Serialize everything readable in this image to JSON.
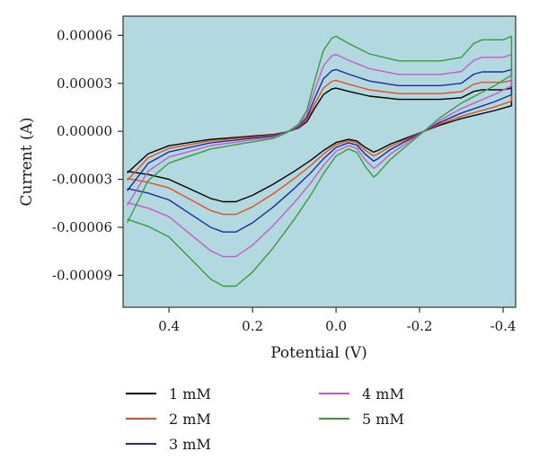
{
  "chart_data": {
    "type": "line",
    "title": "",
    "xlabel": "Potential (V)",
    "ylabel": "Current (A)",
    "xlim": [
      0.51,
      -0.43
    ],
    "ylim": [
      -0.00011,
      7.2e-05
    ],
    "x_ticks": [
      0.4,
      0.2,
      0.0,
      -0.2,
      -0.4
    ],
    "x_tick_labels": [
      "0.4",
      "0.2",
      "0.0",
      "-0.2",
      "-0.4"
    ],
    "y_ticks": [
      6e-05,
      3e-05,
      0.0,
      -3e-05,
      -6e-05,
      -9e-05
    ],
    "y_tick_labels": [
      "0.00006",
      "0.00003",
      "0.00000",
      "-0.00003",
      "-0.00006",
      "-0.00009"
    ],
    "plot_background": "#b3d9e0",
    "grid": false,
    "legend_position": "bottom",
    "series": [
      {
        "name": "1 mM",
        "color": "#000000",
        "scale": 1.0
      },
      {
        "name": "2 mM",
        "color": "#e0501e",
        "scale": 1.18
      },
      {
        "name": "3 mM",
        "color": "#1f2a9c",
        "scale": 1.43
      },
      {
        "name": "4 mM",
        "color": "#c85ac8",
        "scale": 1.78
      },
      {
        "name": "5 mM",
        "color": "#3c9a3c",
        "scale": 2.2
      }
    ],
    "base_curve": {
      "description_free_points": true,
      "forward_x": [
        0.5,
        0.45,
        0.4,
        0.35,
        0.3,
        0.25,
        0.2,
        0.15,
        0.12,
        0.09,
        0.07,
        0.05,
        0.03,
        0.01,
        0.0,
        -0.03,
        -0.08,
        -0.15,
        -0.2,
        -0.25,
        -0.3,
        -0.33,
        -0.35,
        -0.4,
        -0.42
      ],
      "forward_y": [
        -2.6e-05,
        -1.4e-05,
        -9e-06,
        -7e-06,
        -5e-06,
        -4e-06,
        -3e-06,
        -2e-06,
        -5e-07,
        2e-06,
        6e-06,
        1.5e-05,
        2.3e-05,
        2.65e-05,
        2.7e-05,
        2.5e-05,
        2.2e-05,
        2e-05,
        2e-05,
        2e-05,
        2.1e-05,
        2.5e-05,
        2.6e-05,
        2.6e-05,
        2.7e-05
      ],
      "reverse_x": [
        -0.42,
        -0.38,
        -0.3,
        -0.25,
        -0.2,
        -0.17,
        -0.13,
        -0.1,
        -0.09,
        -0.07,
        -0.05,
        -0.03,
        0.0,
        0.03,
        0.06,
        0.1,
        0.15,
        0.2,
        0.24,
        0.27,
        0.3,
        0.35,
        0.4,
        0.45,
        0.5
      ],
      "reverse_y": [
        1.6e-05,
        1.3e-05,
        8e-06,
        4e-06,
        -1e-06,
        -4e-06,
        -8e-06,
        -1.2e-05,
        -1.3e-05,
        -1e-05,
        -6e-06,
        -5e-06,
        -7e-06,
        -1.2e-05,
        -1.8e-05,
        -2.5e-05,
        -3.3e-05,
        -4e-05,
        -4.4e-05,
        -4.4e-05,
        -4.2e-05,
        -3.6e-05,
        -3e-05,
        -2.7e-05,
        -2.5e-05
      ]
    }
  }
}
